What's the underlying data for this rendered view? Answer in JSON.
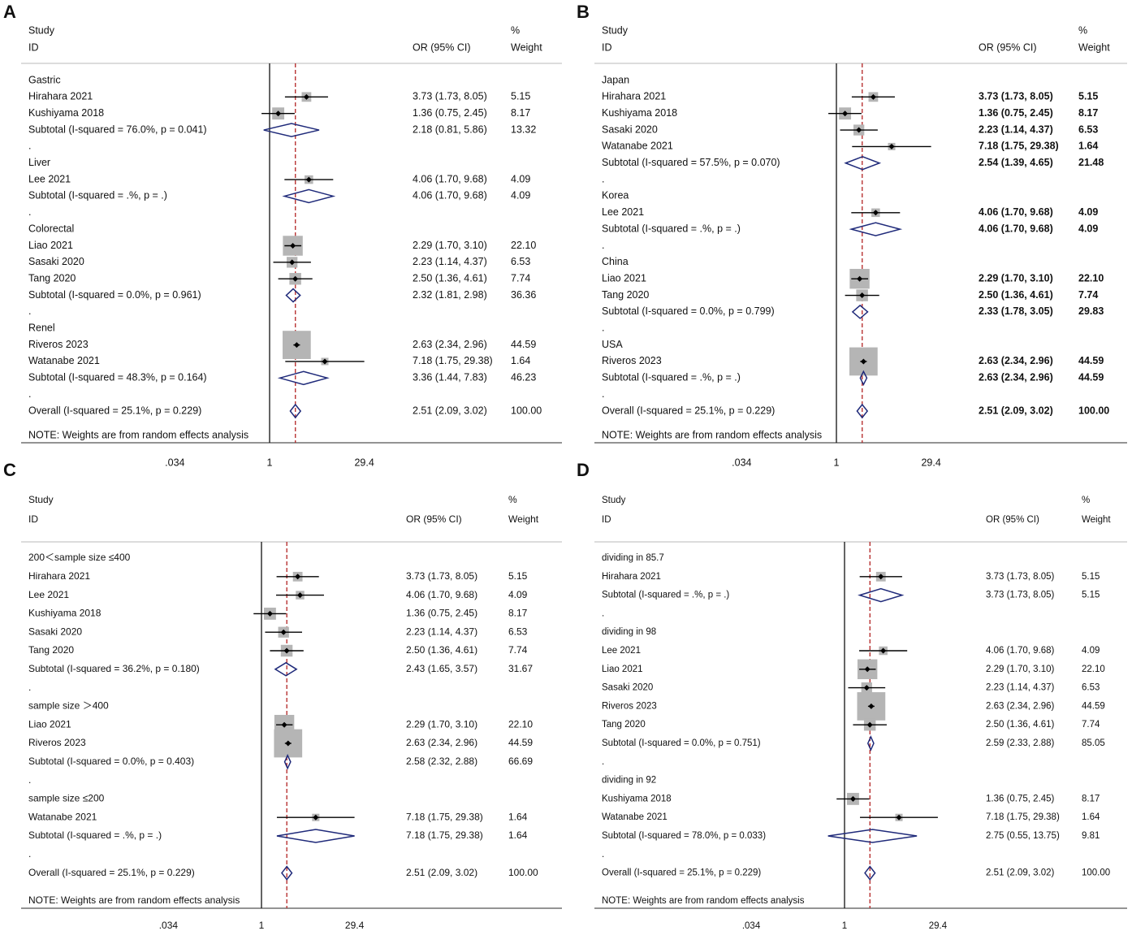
{
  "chart_data": [
    {
      "type": "forest",
      "panel_label": "A",
      "header": {
        "study": "Study",
        "id": "ID",
        "or_ci": "OR (95% CI)",
        "pct": "%",
        "weight": "Weight"
      },
      "x_ticks": [
        ".034",
        "1",
        "29.4"
      ],
      "x_tick_values": [
        0.034,
        1,
        29.4
      ],
      "overall_or": 2.51,
      "note": "NOTE: Weights are from random effects analysis",
      "rows": [
        {
          "kind": "group",
          "label": "Gastric"
        },
        {
          "kind": "study",
          "label": "Hirahara 2021",
          "or": 3.73,
          "lo": 1.73,
          "hi": 8.05,
          "weight": 5.15,
          "ci_text": "3.73 (1.73, 8.05)",
          "weight_text": "5.15"
        },
        {
          "kind": "study",
          "label": "Kushiyama 2018",
          "or": 1.36,
          "lo": 0.75,
          "hi": 2.45,
          "weight": 8.17,
          "ci_text": "1.36 (0.75, 2.45)",
          "weight_text": "8.17"
        },
        {
          "kind": "subtotal",
          "label": "Subtotal  (I-squared = 76.0%, p = 0.041)",
          "or": 2.18,
          "lo": 0.81,
          "hi": 5.86,
          "ci_text": "2.18 (0.81, 5.86)",
          "weight_text": "13.32"
        },
        {
          "kind": "dot",
          "label": "."
        },
        {
          "kind": "group",
          "label": "Liver"
        },
        {
          "kind": "study",
          "label": "Lee 2021",
          "or": 4.06,
          "lo": 1.7,
          "hi": 9.68,
          "weight": 4.09,
          "ci_text": "4.06 (1.70, 9.68)",
          "weight_text": "4.09"
        },
        {
          "kind": "subtotal",
          "label": "Subtotal  (I-squared = .%, p = .)",
          "or": 4.06,
          "lo": 1.7,
          "hi": 9.68,
          "ci_text": "4.06 (1.70, 9.68)",
          "weight_text": "4.09"
        },
        {
          "kind": "dot",
          "label": "."
        },
        {
          "kind": "group",
          "label": "Colorectal"
        },
        {
          "kind": "study",
          "label": "Liao 2021",
          "or": 2.29,
          "lo": 1.7,
          "hi": 3.1,
          "weight": 22.1,
          "ci_text": "2.29 (1.70, 3.10)",
          "weight_text": "22.10"
        },
        {
          "kind": "study",
          "label": "Sasaki 2020",
          "or": 2.23,
          "lo": 1.14,
          "hi": 4.37,
          "weight": 6.53,
          "ci_text": "2.23 (1.14, 4.37)",
          "weight_text": "6.53"
        },
        {
          "kind": "study",
          "label": "Tang 2020",
          "or": 2.5,
          "lo": 1.36,
          "hi": 4.61,
          "weight": 7.74,
          "ci_text": "2.50 (1.36, 4.61)",
          "weight_text": "7.74"
        },
        {
          "kind": "subtotal",
          "label": "Subtotal  (I-squared = 0.0%, p = 0.961)",
          "or": 2.32,
          "lo": 1.81,
          "hi": 2.98,
          "ci_text": "2.32 (1.81, 2.98)",
          "weight_text": "36.36"
        },
        {
          "kind": "dot",
          "label": "."
        },
        {
          "kind": "group",
          "label": "Renel"
        },
        {
          "kind": "study",
          "label": "Riveros 2023",
          "or": 2.63,
          "lo": 2.34,
          "hi": 2.96,
          "weight": 44.59,
          "ci_text": "2.63 (2.34, 2.96)",
          "weight_text": "44.59"
        },
        {
          "kind": "study",
          "label": "Watanabe 2021",
          "or": 7.18,
          "lo": 1.75,
          "hi": 29.38,
          "weight": 1.64,
          "ci_text": "7.18 (1.75, 29.38)",
          "weight_text": "1.64"
        },
        {
          "kind": "subtotal",
          "label": "Subtotal  (I-squared = 48.3%, p = 0.164)",
          "or": 3.36,
          "lo": 1.44,
          "hi": 7.83,
          "ci_text": "3.36 (1.44, 7.83)",
          "weight_text": "46.23"
        },
        {
          "kind": "dot",
          "label": "."
        },
        {
          "kind": "overall",
          "label": "Overall  (I-squared = 25.1%, p = 0.229)",
          "or": 2.51,
          "lo": 2.09,
          "hi": 3.02,
          "ci_text": "2.51 (2.09, 3.02)",
          "weight_text": "100.00"
        }
      ]
    },
    {
      "type": "forest",
      "panel_label": "B",
      "header": {
        "study": "Study",
        "id": "ID",
        "or_ci": "OR (95% CI)",
        "pct": "%",
        "weight": "Weight"
      },
      "x_ticks": [
        ".034",
        "1",
        "29.4"
      ],
      "x_tick_values": [
        0.034,
        1,
        29.4
      ],
      "overall_or": 2.51,
      "note": "NOTE: Weights are from random effects analysis",
      "rows": [
        {
          "kind": "group",
          "label": "Japan"
        },
        {
          "kind": "study",
          "label": "Hirahara 2021",
          "or": 3.73,
          "lo": 1.73,
          "hi": 8.05,
          "weight": 5.15,
          "ci_text": "3.73 (1.73, 8.05)",
          "weight_text": "5.15"
        },
        {
          "kind": "study",
          "label": "Kushiyama 2018",
          "or": 1.36,
          "lo": 0.75,
          "hi": 2.45,
          "weight": 8.17,
          "ci_text": "1.36 (0.75, 2.45)",
          "weight_text": "8.17"
        },
        {
          "kind": "study",
          "label": "Sasaki 2020",
          "or": 2.23,
          "lo": 1.14,
          "hi": 4.37,
          "weight": 6.53,
          "ci_text": "2.23 (1.14, 4.37)",
          "weight_text": "6.53"
        },
        {
          "kind": "study",
          "label": "Watanabe 2021",
          "or": 7.18,
          "lo": 1.75,
          "hi": 29.38,
          "weight": 1.64,
          "ci_text": "7.18 (1.75, 29.38)",
          "weight_text": "1.64"
        },
        {
          "kind": "subtotal",
          "label": "Subtotal  (I-squared = 57.5%, p = 0.070)",
          "or": 2.54,
          "lo": 1.39,
          "hi": 4.65,
          "ci_text": "2.54 (1.39, 4.65)",
          "weight_text": "21.48"
        },
        {
          "kind": "dot",
          "label": "."
        },
        {
          "kind": "group",
          "label": "Korea"
        },
        {
          "kind": "study",
          "label": "Lee 2021",
          "or": 4.06,
          "lo": 1.7,
          "hi": 9.68,
          "weight": 4.09,
          "ci_text": "4.06 (1.70, 9.68)",
          "weight_text": "4.09"
        },
        {
          "kind": "subtotal",
          "label": "Subtotal  (I-squared = .%, p = .)",
          "or": 4.06,
          "lo": 1.7,
          "hi": 9.68,
          "ci_text": "4.06 (1.70, 9.68)",
          "weight_text": "4.09"
        },
        {
          "kind": "dot",
          "label": "."
        },
        {
          "kind": "group",
          "label": "China"
        },
        {
          "kind": "study",
          "label": "Liao 2021",
          "or": 2.29,
          "lo": 1.7,
          "hi": 3.1,
          "weight": 22.1,
          "ci_text": "2.29 (1.70, 3.10)",
          "weight_text": "22.10"
        },
        {
          "kind": "study",
          "label": "Tang 2020",
          "or": 2.5,
          "lo": 1.36,
          "hi": 4.61,
          "weight": 7.74,
          "ci_text": "2.50 (1.36, 4.61)",
          "weight_text": "7.74"
        },
        {
          "kind": "subtotal",
          "label": "Subtotal  (I-squared = 0.0%, p = 0.799)",
          "or": 2.33,
          "lo": 1.78,
          "hi": 3.05,
          "ci_text": "2.33 (1.78, 3.05)",
          "weight_text": "29.83"
        },
        {
          "kind": "dot",
          "label": "."
        },
        {
          "kind": "group",
          "label": "USA"
        },
        {
          "kind": "study",
          "label": "Riveros 2023",
          "or": 2.63,
          "lo": 2.34,
          "hi": 2.96,
          "weight": 44.59,
          "ci_text": "2.63 (2.34, 2.96)",
          "weight_text": "44.59"
        },
        {
          "kind": "subtotal",
          "label": "Subtotal  (I-squared = .%, p = .)",
          "or": 2.63,
          "lo": 2.34,
          "hi": 2.96,
          "ci_text": "2.63 (2.34, 2.96)",
          "weight_text": "44.59"
        },
        {
          "kind": "dot",
          "label": "."
        },
        {
          "kind": "overall",
          "label": "Overall  (I-squared = 25.1%, p = 0.229)",
          "or": 2.51,
          "lo": 2.09,
          "hi": 3.02,
          "ci_text": "2.51 (2.09, 3.02)",
          "weight_text": "100.00"
        }
      ]
    },
    {
      "type": "forest",
      "panel_label": "C",
      "header": {
        "study": "Study",
        "id": "ID",
        "or_ci": "OR (95% CI)",
        "pct": "%",
        "weight": "Weight"
      },
      "x_ticks": [
        ".034",
        "1",
        "29.4"
      ],
      "x_tick_values": [
        0.034,
        1,
        29.4
      ],
      "overall_or": 2.51,
      "note": "NOTE: Weights are from random effects analysis",
      "rows": [
        {
          "kind": "group",
          "label": "200＜sample size ≤400"
        },
        {
          "kind": "study",
          "label": "Hirahara 2021",
          "or": 3.73,
          "lo": 1.73,
          "hi": 8.05,
          "weight": 5.15,
          "ci_text": "3.73 (1.73, 8.05)",
          "weight_text": "5.15"
        },
        {
          "kind": "study",
          "label": "Lee 2021",
          "or": 4.06,
          "lo": 1.7,
          "hi": 9.68,
          "weight": 4.09,
          "ci_text": "4.06 (1.70, 9.68)",
          "weight_text": "4.09"
        },
        {
          "kind": "study",
          "label": "Kushiyama 2018",
          "or": 1.36,
          "lo": 0.75,
          "hi": 2.45,
          "weight": 8.17,
          "ci_text": "1.36 (0.75, 2.45)",
          "weight_text": "8.17"
        },
        {
          "kind": "study",
          "label": "Sasaki 2020",
          "or": 2.23,
          "lo": 1.14,
          "hi": 4.37,
          "weight": 6.53,
          "ci_text": "2.23 (1.14, 4.37)",
          "weight_text": "6.53"
        },
        {
          "kind": "study",
          "label": "Tang 2020",
          "or": 2.5,
          "lo": 1.36,
          "hi": 4.61,
          "weight": 7.74,
          "ci_text": "2.50 (1.36, 4.61)",
          "weight_text": "7.74"
        },
        {
          "kind": "subtotal",
          "label": "Subtotal  (I-squared = 36.2%, p = 0.180)",
          "or": 2.43,
          "lo": 1.65,
          "hi": 3.57,
          "ci_text": "2.43 (1.65, 3.57)",
          "weight_text": "31.67"
        },
        {
          "kind": "dot",
          "label": "."
        },
        {
          "kind": "group",
          "label": "sample size ＞400"
        },
        {
          "kind": "study",
          "label": "Liao 2021",
          "or": 2.29,
          "lo": 1.7,
          "hi": 3.1,
          "weight": 22.1,
          "ci_text": "2.29 (1.70, 3.10)",
          "weight_text": "22.10"
        },
        {
          "kind": "study",
          "label": "Riveros 2023",
          "or": 2.63,
          "lo": 2.34,
          "hi": 2.96,
          "weight": 44.59,
          "ci_text": "2.63 (2.34, 2.96)",
          "weight_text": "44.59"
        },
        {
          "kind": "subtotal",
          "label": "Subtotal  (I-squared = 0.0%, p = 0.403)",
          "or": 2.58,
          "lo": 2.32,
          "hi": 2.88,
          "ci_text": "2.58 (2.32, 2.88)",
          "weight_text": "66.69"
        },
        {
          "kind": "dot",
          "label": "."
        },
        {
          "kind": "group",
          "label": "sample size ≤200"
        },
        {
          "kind": "study",
          "label": "Watanabe 2021",
          "or": 7.18,
          "lo": 1.75,
          "hi": 29.38,
          "weight": 1.64,
          "ci_text": "7.18 (1.75, 29.38)",
          "weight_text": "1.64"
        },
        {
          "kind": "subtotal",
          "label": "Subtotal  (I-squared = .%, p = .)",
          "or": 7.18,
          "lo": 1.75,
          "hi": 29.38,
          "ci_text": "7.18 (1.75, 29.38)",
          "weight_text": "1.64"
        },
        {
          "kind": "dot",
          "label": "."
        },
        {
          "kind": "overall",
          "label": "Overall  (I-squared = 25.1%, p = 0.229)",
          "or": 2.51,
          "lo": 2.09,
          "hi": 3.02,
          "ci_text": "2.51 (2.09, 3.02)",
          "weight_text": "100.00"
        }
      ]
    },
    {
      "type": "forest",
      "panel_label": "D",
      "header": {
        "study": "Study",
        "id": "ID",
        "or_ci": "OR (95% CI)",
        "pct": "%",
        "weight": "Weight"
      },
      "x_ticks": [
        ".034",
        "1",
        "29.4"
      ],
      "x_tick_values": [
        0.034,
        1,
        29.4
      ],
      "overall_or": 2.51,
      "note": "NOTE: Weights are from random effects analysis",
      "rows": [
        {
          "kind": "group",
          "label": "dividing in 85.7"
        },
        {
          "kind": "study",
          "label": "Hirahara 2021",
          "or": 3.73,
          "lo": 1.73,
          "hi": 8.05,
          "weight": 5.15,
          "ci_text": "3.73 (1.73, 8.05)",
          "weight_text": "5.15"
        },
        {
          "kind": "subtotal",
          "label": "Subtotal  (I-squared = .%, p = .)",
          "or": 3.73,
          "lo": 1.73,
          "hi": 8.05,
          "ci_text": "3.73 (1.73, 8.05)",
          "weight_text": "5.15"
        },
        {
          "kind": "dot",
          "label": "."
        },
        {
          "kind": "group",
          "label": "dividing in 98"
        },
        {
          "kind": "study",
          "label": "Lee 2021",
          "or": 4.06,
          "lo": 1.7,
          "hi": 9.68,
          "weight": 4.09,
          "ci_text": "4.06 (1.70, 9.68)",
          "weight_text": "4.09"
        },
        {
          "kind": "study",
          "label": "Liao 2021",
          "or": 2.29,
          "lo": 1.7,
          "hi": 3.1,
          "weight": 22.1,
          "ci_text": "2.29 (1.70, 3.10)",
          "weight_text": "22.10"
        },
        {
          "kind": "study",
          "label": "Sasaki 2020",
          "or": 2.23,
          "lo": 1.14,
          "hi": 4.37,
          "weight": 6.53,
          "ci_text": "2.23 (1.14, 4.37)",
          "weight_text": "6.53"
        },
        {
          "kind": "study",
          "label": "Riveros 2023",
          "or": 2.63,
          "lo": 2.34,
          "hi": 2.96,
          "weight": 44.59,
          "ci_text": "2.63 (2.34, 2.96)",
          "weight_text": "44.59"
        },
        {
          "kind": "study",
          "label": "Tang 2020",
          "or": 2.5,
          "lo": 1.36,
          "hi": 4.61,
          "weight": 7.74,
          "ci_text": "2.50 (1.36, 4.61)",
          "weight_text": "7.74"
        },
        {
          "kind": "subtotal",
          "label": "Subtotal  (I-squared = 0.0%, p = 0.751)",
          "or": 2.59,
          "lo": 2.33,
          "hi": 2.88,
          "ci_text": "2.59 (2.33, 2.88)",
          "weight_text": "85.05"
        },
        {
          "kind": "dot",
          "label": "."
        },
        {
          "kind": "group",
          "label": "dividing in 92"
        },
        {
          "kind": "study",
          "label": "Kushiyama 2018",
          "or": 1.36,
          "lo": 0.75,
          "hi": 2.45,
          "weight": 8.17,
          "ci_text": "1.36 (0.75, 2.45)",
          "weight_text": "8.17"
        },
        {
          "kind": "study",
          "label": "Watanabe 2021",
          "or": 7.18,
          "lo": 1.75,
          "hi": 29.38,
          "weight": 1.64,
          "ci_text": "7.18 (1.75, 29.38)",
          "weight_text": "1.64"
        },
        {
          "kind": "subtotal",
          "label": "Subtotal  (I-squared = 78.0%, p = 0.033)",
          "or": 2.75,
          "lo": 0.55,
          "hi": 13.75,
          "ci_text": "2.75 (0.55, 13.75)",
          "weight_text": "9.81"
        },
        {
          "kind": "dot",
          "label": "."
        },
        {
          "kind": "overall",
          "label": "Overall  (I-squared = 25.1%, p = 0.229)",
          "or": 2.51,
          "lo": 2.09,
          "hi": 3.02,
          "ci_text": "2.51 (2.09, 3.02)",
          "weight_text": "100.00"
        }
      ]
    }
  ]
}
